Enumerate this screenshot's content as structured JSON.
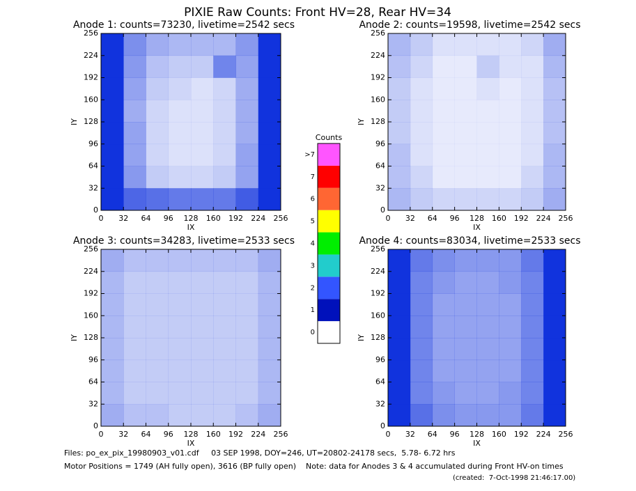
{
  "title": "PIXIE Raw Counts:  Front HV=28, Rear HV=34",
  "chart_data": [
    {
      "type": "heatmap",
      "title": "Anode 1: counts=73230, livetime=2542 secs",
      "xlabel": "IX",
      "ylabel": "IY",
      "xlim": [
        0,
        256
      ],
      "ylim": [
        0,
        256
      ],
      "xticks": [
        0,
        32,
        64,
        96,
        128,
        160,
        192,
        224,
        256
      ],
      "yticks": [
        0,
        32,
        64,
        96,
        128,
        160,
        192,
        224,
        256
      ],
      "z": [
        [
          2.5,
          1.5,
          1.4,
          1.3,
          1.3,
          1.3,
          1.6,
          2.5
        ],
        [
          2.5,
          1.0,
          0.5,
          0.4,
          0.4,
          0.5,
          0.9,
          2.5
        ],
        [
          2.5,
          0.9,
          0.4,
          0.3,
          0.3,
          0.4,
          0.9,
          2.4
        ],
        [
          2.4,
          0.9,
          0.4,
          0.3,
          0.3,
          0.4,
          0.8,
          2.4
        ],
        [
          2.4,
          0.8,
          0.4,
          0.3,
          0.3,
          0.4,
          0.8,
          2.4
        ],
        [
          2.4,
          0.9,
          0.5,
          0.4,
          0.3,
          0.4,
          0.8,
          2.4
        ],
        [
          2.5,
          1.0,
          0.6,
          0.5,
          0.5,
          1.2,
          0.9,
          2.5
        ],
        [
          2.5,
          1.1,
          0.8,
          0.7,
          0.7,
          0.7,
          1.0,
          2.5
        ]
      ]
    },
    {
      "type": "heatmap",
      "title": "Anode 2: counts=19598, livetime=2542 secs",
      "xlabel": "IX",
      "ylabel": "IY",
      "xlim": [
        0,
        256
      ],
      "ylim": [
        0,
        256
      ],
      "xticks": [
        0,
        32,
        64,
        96,
        128,
        160,
        192,
        224,
        256
      ],
      "yticks": [
        0,
        32,
        64,
        96,
        128,
        160,
        192,
        224,
        256
      ],
      "z": [
        [
          0.7,
          0.5,
          0.4,
          0.4,
          0.4,
          0.4,
          0.5,
          0.8
        ],
        [
          0.6,
          0.4,
          0.2,
          0.2,
          0.2,
          0.2,
          0.4,
          0.7
        ],
        [
          0.6,
          0.3,
          0.2,
          0.2,
          0.2,
          0.2,
          0.3,
          0.7
        ],
        [
          0.5,
          0.3,
          0.2,
          0.2,
          0.2,
          0.2,
          0.3,
          0.6
        ],
        [
          0.5,
          0.3,
          0.2,
          0.2,
          0.2,
          0.2,
          0.3,
          0.6
        ],
        [
          0.5,
          0.3,
          0.2,
          0.2,
          0.3,
          0.2,
          0.3,
          0.6
        ],
        [
          0.6,
          0.4,
          0.2,
          0.2,
          0.5,
          0.3,
          0.3,
          0.7
        ],
        [
          0.7,
          0.5,
          0.3,
          0.3,
          0.3,
          0.3,
          0.4,
          0.8
        ]
      ]
    },
    {
      "type": "heatmap",
      "title": "Anode 3: counts=34283, livetime=2533 secs",
      "xlabel": "IX",
      "ylabel": "IY",
      "xlim": [
        0,
        256
      ],
      "ylim": [
        0,
        256
      ],
      "xticks": [
        0,
        32,
        64,
        96,
        128,
        160,
        192,
        224,
        256
      ],
      "yticks": [
        0,
        32,
        64,
        96,
        128,
        160,
        192,
        224,
        256
      ],
      "z": [
        [
          0.8,
          0.6,
          0.6,
          0.5,
          0.5,
          0.5,
          0.6,
          0.8
        ],
        [
          0.7,
          0.5,
          0.5,
          0.5,
          0.5,
          0.5,
          0.5,
          0.7
        ],
        [
          0.7,
          0.5,
          0.5,
          0.5,
          0.5,
          0.5,
          0.5,
          0.7
        ],
        [
          0.7,
          0.5,
          0.5,
          0.5,
          0.5,
          0.5,
          0.5,
          0.7
        ],
        [
          0.7,
          0.5,
          0.5,
          0.5,
          0.5,
          0.5,
          0.5,
          0.7
        ],
        [
          0.7,
          0.5,
          0.5,
          0.5,
          0.5,
          0.5,
          0.5,
          0.7
        ],
        [
          0.7,
          0.5,
          0.5,
          0.5,
          0.5,
          0.5,
          0.5,
          0.7
        ],
        [
          0.8,
          0.6,
          0.6,
          0.6,
          0.6,
          0.6,
          0.6,
          0.8
        ]
      ]
    },
    {
      "type": "heatmap",
      "title": "Anode 4: counts=83034, livetime=2533 secs",
      "xlabel": "IX",
      "ylabel": "IY",
      "xlim": [
        0,
        256
      ],
      "ylim": [
        0,
        256
      ],
      "xticks": [
        0,
        32,
        64,
        96,
        128,
        160,
        192,
        224,
        256
      ],
      "yticks": [
        0,
        32,
        64,
        96,
        128,
        160,
        192,
        224,
        256
      ],
      "z": [
        [
          2.6,
          1.4,
          1.1,
          1.0,
          1.0,
          1.0,
          1.3,
          2.7
        ],
        [
          2.5,
          1.2,
          1.0,
          0.9,
          0.9,
          1.0,
          1.2,
          2.6
        ],
        [
          2.5,
          1.2,
          0.9,
          0.9,
          0.9,
          0.9,
          1.2,
          2.6
        ],
        [
          2.5,
          1.2,
          0.9,
          0.9,
          0.9,
          0.9,
          1.2,
          2.6
        ],
        [
          2.5,
          1.2,
          0.9,
          0.9,
          0.9,
          0.9,
          1.2,
          2.6
        ],
        [
          2.5,
          1.2,
          0.9,
          0.9,
          0.9,
          0.9,
          1.2,
          2.6
        ],
        [
          2.5,
          1.2,
          1.0,
          0.9,
          0.9,
          1.0,
          1.2,
          2.6
        ],
        [
          2.6,
          1.3,
          1.1,
          1.0,
          1.0,
          1.0,
          1.3,
          2.7
        ]
      ]
    }
  ],
  "colorbar": {
    "title": "Counts",
    "labels": [
      "0",
      "1",
      "2",
      "3",
      "4",
      "5",
      "6",
      "7",
      ">7"
    ],
    "colors": [
      "#ffffff",
      "#0011bb",
      "#3355ff",
      "#22cccc",
      "#00ee00",
      "#ffff00",
      "#ff6633",
      "#ff0000",
      "#ff55ff"
    ]
  },
  "footer": {
    "files": "Files: po_ex_pix_19980903_v01.cdf     03 SEP 1998, DOY=246, UT=20802-24178 secs,  5.78- 6.72 hrs",
    "motor": "Motor Positions = 1749 (AH fully open), 3616 (BP fully open)    Note: data for Anodes 3 & 4 accumulated during Front HV-on times",
    "created": "(created:  7-Oct-1998 21:46:17.00)"
  }
}
